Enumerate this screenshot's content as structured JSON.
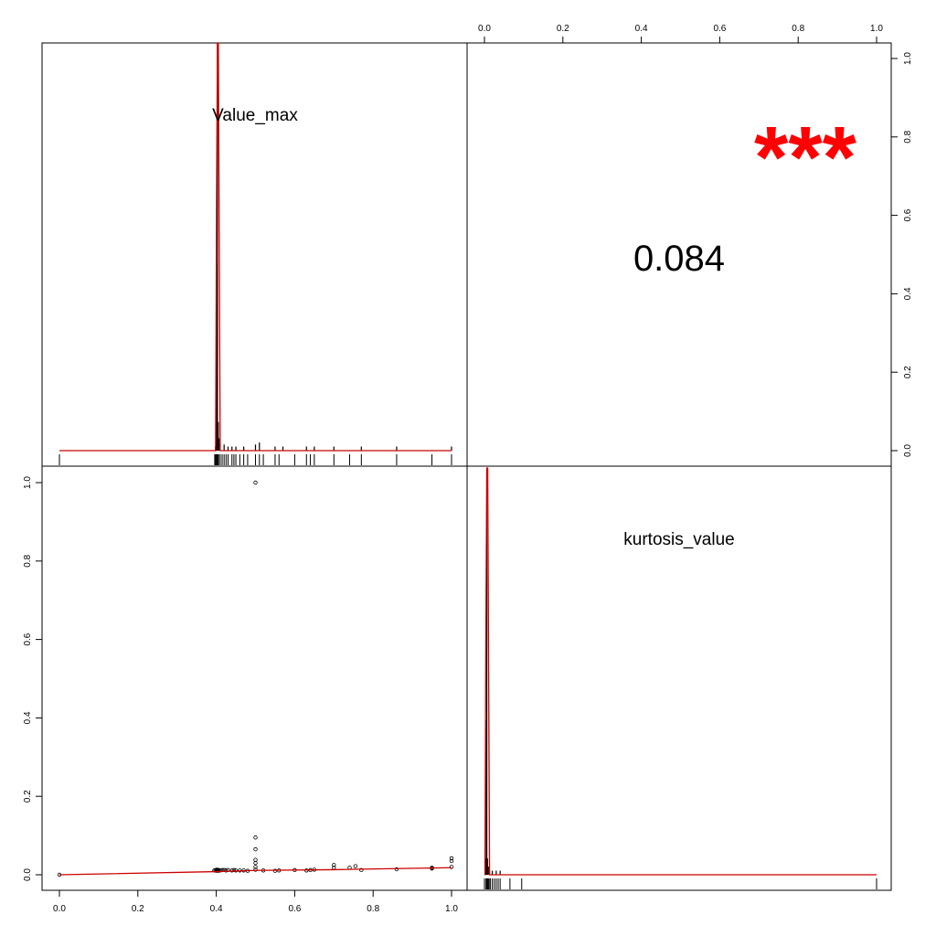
{
  "chart_data": {
    "type": "scatter-matrix",
    "variables": [
      "Value_max",
      "kurtosis_value"
    ],
    "axis_range": [
      0,
      1
    ],
    "ticks": [
      "0.0",
      "0.2",
      "0.4",
      "0.6",
      "0.8",
      "1.0"
    ],
    "correlation": {
      "value": "0.084",
      "stars": "***",
      "stars_color": "#ff0000"
    },
    "fit_line_color": "#cc0000",
    "histogram_color": "#000000",
    "hist_value_max": {
      "bin_width": 0.002,
      "peak_x": 0.403,
      "bins": [
        {
          "x": 0.398,
          "h": 0.01
        },
        {
          "x": 0.4,
          "h": 0.09
        },
        {
          "x": 0.401,
          "h": 0.46
        },
        {
          "x": 0.403,
          "h": 1.0
        },
        {
          "x": 0.405,
          "h": 0.07
        },
        {
          "x": 0.407,
          "h": 0.03
        },
        {
          "x": 0.41,
          "h": 0.02
        },
        {
          "x": 0.42,
          "h": 0.015
        },
        {
          "x": 0.43,
          "h": 0.01
        },
        {
          "x": 0.44,
          "h": 0.01
        },
        {
          "x": 0.45,
          "h": 0.01
        },
        {
          "x": 0.47,
          "h": 0.01
        },
        {
          "x": 0.5,
          "h": 0.015
        },
        {
          "x": 0.51,
          "h": 0.02
        },
        {
          "x": 0.55,
          "h": 0.01
        },
        {
          "x": 0.57,
          "h": 0.01
        },
        {
          "x": 0.63,
          "h": 0.01
        },
        {
          "x": 0.65,
          "h": 0.01
        },
        {
          "x": 0.7,
          "h": 0.01
        },
        {
          "x": 0.77,
          "h": 0.01
        },
        {
          "x": 0.86,
          "h": 0.01
        },
        {
          "x": 1.0,
          "h": 0.01
        }
      ],
      "rug": [
        0.0,
        0.396,
        0.398,
        0.4,
        0.402,
        0.404,
        0.406,
        0.41,
        0.415,
        0.42,
        0.425,
        0.43,
        0.44,
        0.445,
        0.45,
        0.46,
        0.47,
        0.48,
        0.5,
        0.51,
        0.52,
        0.55,
        0.56,
        0.6,
        0.63,
        0.64,
        0.65,
        0.7,
        0.74,
        0.77,
        0.86,
        0.95,
        1.0
      ]
    },
    "hist_kurtosis_value": {
      "bin_width": 0.002,
      "peak_x": 0.006,
      "bins": [
        {
          "x": 0.002,
          "h": 0.01
        },
        {
          "x": 0.004,
          "h": 0.04
        },
        {
          "x": 0.005,
          "h": 0.38
        },
        {
          "x": 0.006,
          "h": 1.0
        },
        {
          "x": 0.008,
          "h": 0.04
        },
        {
          "x": 0.01,
          "h": 0.02
        },
        {
          "x": 0.013,
          "h": 0.01
        },
        {
          "x": 0.02,
          "h": 0.01
        },
        {
          "x": 0.03,
          "h": 0.01
        },
        {
          "x": 0.04,
          "h": 0.01
        }
      ],
      "rug": [
        0.0,
        0.004,
        0.006,
        0.008,
        0.01,
        0.012,
        0.015,
        0.02,
        0.025,
        0.03,
        0.035,
        0.04,
        0.065,
        0.095,
        1.0
      ]
    },
    "scatter": {
      "xlabel": "Value_max",
      "ylabel": "kurtosis_value",
      "points": [
        [
          0.0,
          0.0
        ],
        [
          0.395,
          0.011
        ],
        [
          0.398,
          0.012
        ],
        [
          0.4,
          0.01
        ],
        [
          0.401,
          0.011
        ],
        [
          0.402,
          0.013
        ],
        [
          0.403,
          0.012
        ],
        [
          0.404,
          0.011
        ],
        [
          0.405,
          0.01
        ],
        [
          0.406,
          0.012
        ],
        [
          0.41,
          0.011
        ],
        [
          0.415,
          0.012
        ],
        [
          0.42,
          0.012
        ],
        [
          0.425,
          0.011
        ],
        [
          0.43,
          0.012
        ],
        [
          0.44,
          0.011
        ],
        [
          0.445,
          0.012
        ],
        [
          0.45,
          0.011
        ],
        [
          0.46,
          0.011
        ],
        [
          0.47,
          0.011
        ],
        [
          0.48,
          0.01
        ],
        [
          0.5,
          0.013
        ],
        [
          0.5,
          0.02
        ],
        [
          0.5,
          0.03
        ],
        [
          0.5,
          0.038
        ],
        [
          0.5,
          0.065
        ],
        [
          0.5,
          0.095
        ],
        [
          0.5,
          1.0
        ],
        [
          0.52,
          0.011
        ],
        [
          0.55,
          0.01
        ],
        [
          0.56,
          0.011
        ],
        [
          0.6,
          0.012
        ],
        [
          0.63,
          0.011
        ],
        [
          0.64,
          0.012
        ],
        [
          0.65,
          0.013
        ],
        [
          0.7,
          0.025
        ],
        [
          0.7,
          0.018
        ],
        [
          0.74,
          0.018
        ],
        [
          0.755,
          0.022
        ],
        [
          0.77,
          0.012
        ],
        [
          0.86,
          0.014
        ],
        [
          0.95,
          0.016
        ],
        [
          0.95,
          0.018
        ],
        [
          1.0,
          0.02
        ],
        [
          1.0,
          0.035
        ],
        [
          1.0,
          0.042
        ]
      ],
      "fit": [
        [
          0.0,
          0.0
        ],
        [
          0.4,
          0.008
        ],
        [
          0.5,
          0.011
        ],
        [
          0.7,
          0.013
        ],
        [
          1.0,
          0.018
        ]
      ]
    }
  }
}
